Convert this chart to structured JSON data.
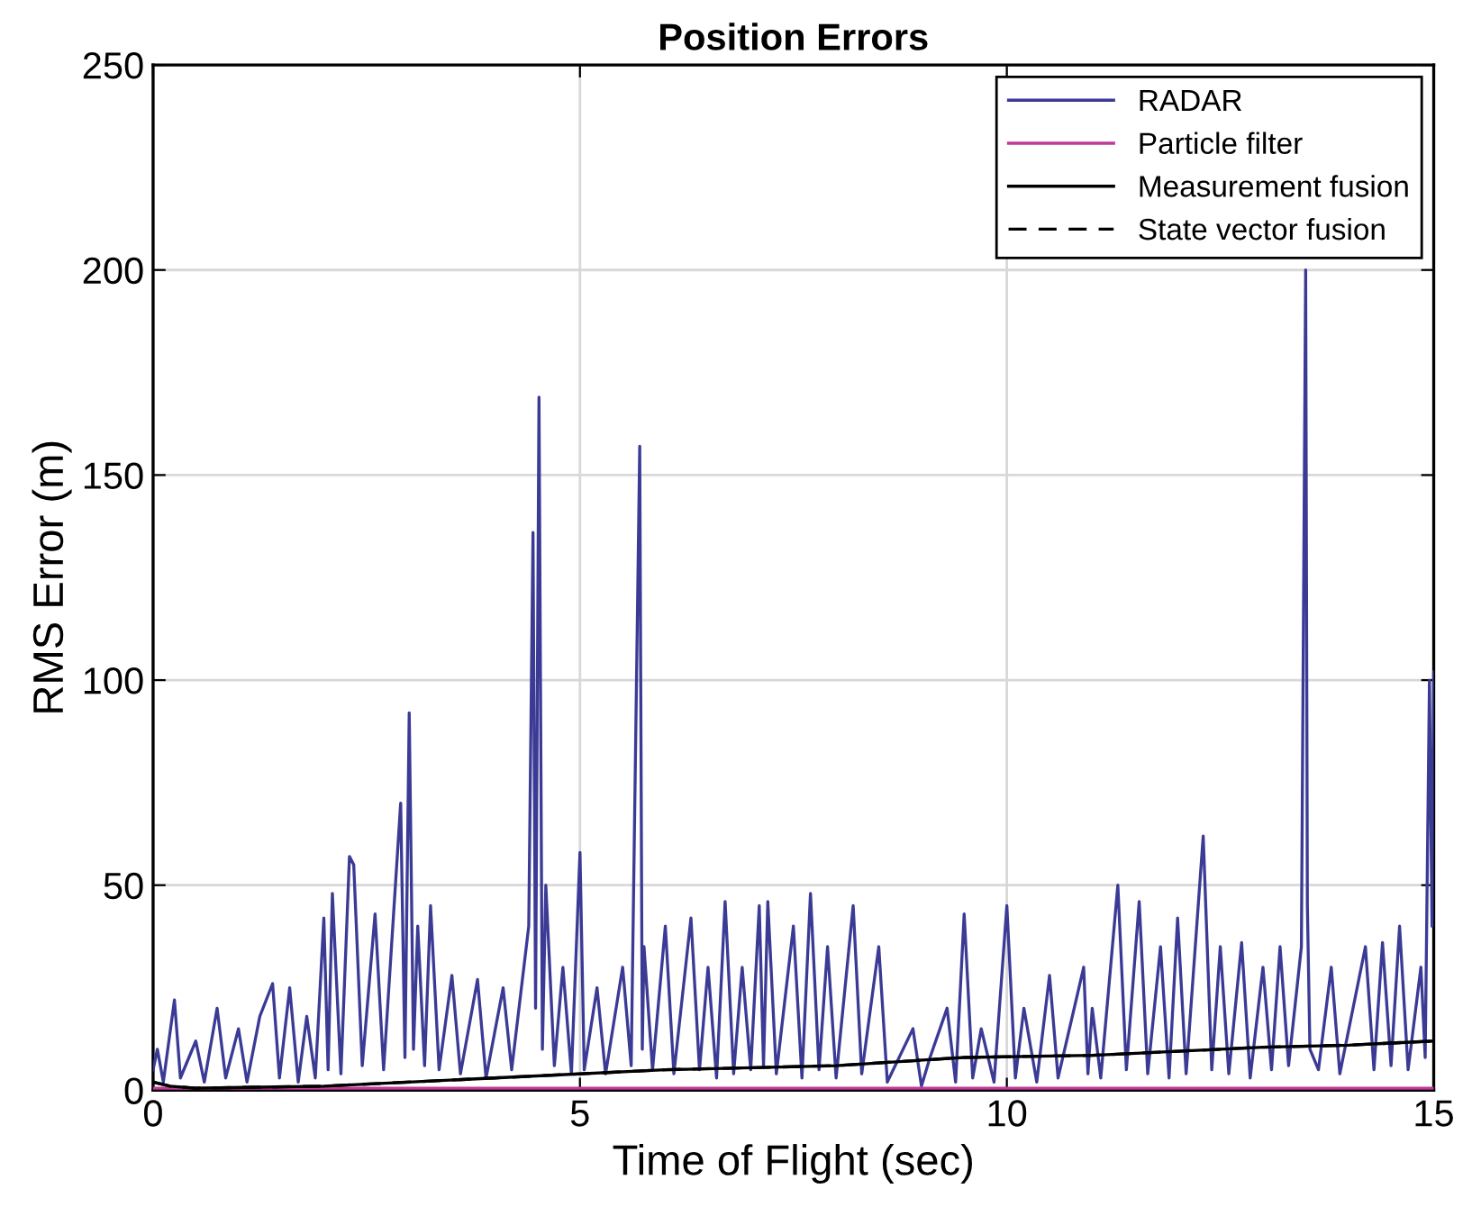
{
  "chart_data": {
    "type": "line",
    "title": "Position Errors",
    "xlabel": "Time of Flight (sec)",
    "ylabel": "RMS Error (m)",
    "xlim": [
      0,
      15
    ],
    "ylim": [
      0,
      250
    ],
    "xticks": [
      0,
      5,
      10,
      15
    ],
    "yticks": [
      0,
      50,
      100,
      150,
      200,
      250
    ],
    "grid": true,
    "legend": "top right",
    "marker": "none",
    "series": [
      {
        "name": "RADAR",
        "color": "#3b3b96",
        "line_style": "solid",
        "x": [
          0,
          0.05,
          0.12,
          0.25,
          0.32,
          0.5,
          0.6,
          0.75,
          0.85,
          1.0,
          1.1,
          1.25,
          1.4,
          1.48,
          1.6,
          1.7,
          1.8,
          1.9,
          2.0,
          2.05,
          2.1,
          2.2,
          2.3,
          2.35,
          2.45,
          2.6,
          2.7,
          2.9,
          2.95,
          3.0,
          3.05,
          3.1,
          3.18,
          3.25,
          3.35,
          3.5,
          3.6,
          3.8,
          3.9,
          4.1,
          4.2,
          4.4,
          4.45,
          4.48,
          4.52,
          4.56,
          4.6,
          4.7,
          4.8,
          4.9,
          5.0,
          5.05,
          5.2,
          5.3,
          5.5,
          5.6,
          5.7,
          5.73,
          5.75,
          5.85,
          6.0,
          6.1,
          6.3,
          6.4,
          6.5,
          6.6,
          6.7,
          6.8,
          6.9,
          7.0,
          7.1,
          7.15,
          7.2,
          7.3,
          7.5,
          7.6,
          7.7,
          7.8,
          7.9,
          8.0,
          8.2,
          8.3,
          8.5,
          8.6,
          8.9,
          9.0,
          9.1,
          9.3,
          9.4,
          9.5,
          9.6,
          9.7,
          9.85,
          10.0,
          10.1,
          10.2,
          10.35,
          10.5,
          10.6,
          10.9,
          10.95,
          11.0,
          11.1,
          11.3,
          11.4,
          11.55,
          11.65,
          11.8,
          11.9,
          12.0,
          12.1,
          12.3,
          12.4,
          12.5,
          12.6,
          12.75,
          12.85,
          13.0,
          13.1,
          13.2,
          13.3,
          13.45,
          13.5,
          13.52,
          13.55,
          13.65,
          13.8,
          13.9,
          14.2,
          14.3,
          14.4,
          14.5,
          14.6,
          14.7,
          14.85,
          14.9,
          14.95,
          14.98,
          15.0
        ],
        "values": [
          5,
          10,
          2,
          22,
          3,
          12,
          2,
          20,
          3,
          15,
          2,
          18,
          26,
          3,
          25,
          2,
          18,
          3,
          42,
          5,
          48,
          4,
          57,
          55,
          6,
          43,
          5,
          70,
          8,
          92,
          10,
          40,
          6,
          45,
          5,
          28,
          4,
          27,
          3,
          25,
          5,
          40,
          136,
          20,
          169,
          10,
          50,
          6,
          30,
          4,
          58,
          5,
          25,
          4,
          30,
          6,
          157,
          10,
          35,
          5,
          40,
          4,
          42,
          5,
          30,
          3,
          46,
          4,
          30,
          5,
          45,
          6,
          46,
          4,
          40,
          3,
          48,
          5,
          35,
          3,
          45,
          4,
          35,
          2,
          15,
          1,
          8,
          20,
          2,
          43,
          3,
          15,
          2,
          45,
          3,
          20,
          2,
          28,
          3,
          30,
          4,
          20,
          3,
          50,
          5,
          46,
          4,
          35,
          3,
          42,
          4,
          62,
          5,
          35,
          4,
          36,
          3,
          30,
          5,
          35,
          6,
          35,
          200,
          45,
          10,
          5,
          30,
          4,
          35,
          5,
          36,
          6,
          40,
          5,
          30,
          8,
          100,
          40,
          102
        ]
      },
      {
        "name": "Particle filter",
        "color": "#c0399a",
        "line_style": "solid",
        "x": [
          0,
          3,
          6,
          9,
          12,
          15
        ],
        "values": [
          0.5,
          0.5,
          0.5,
          0.5,
          0.5,
          0.5
        ]
      },
      {
        "name": "Measurement fusion",
        "color": "#000000",
        "line_style": "solid",
        "x": [
          0,
          0.2,
          0.5,
          2,
          4,
          6,
          8,
          9.5,
          11,
          12,
          13,
          14,
          15
        ],
        "values": [
          2,
          1,
          0.5,
          1,
          3,
          5,
          6,
          8,
          8.5,
          9.5,
          10.5,
          11,
          12
        ]
      },
      {
        "name": "State vector fusion",
        "color": "#000000",
        "line_style": "dashed",
        "x": [
          0,
          0.2,
          0.5,
          2,
          4,
          6,
          8,
          9.5,
          11,
          12,
          13,
          14,
          15
        ],
        "values": [
          2,
          1,
          0.5,
          1,
          3,
          5,
          6,
          8,
          8.5,
          9.5,
          10.5,
          11,
          12
        ]
      }
    ]
  }
}
